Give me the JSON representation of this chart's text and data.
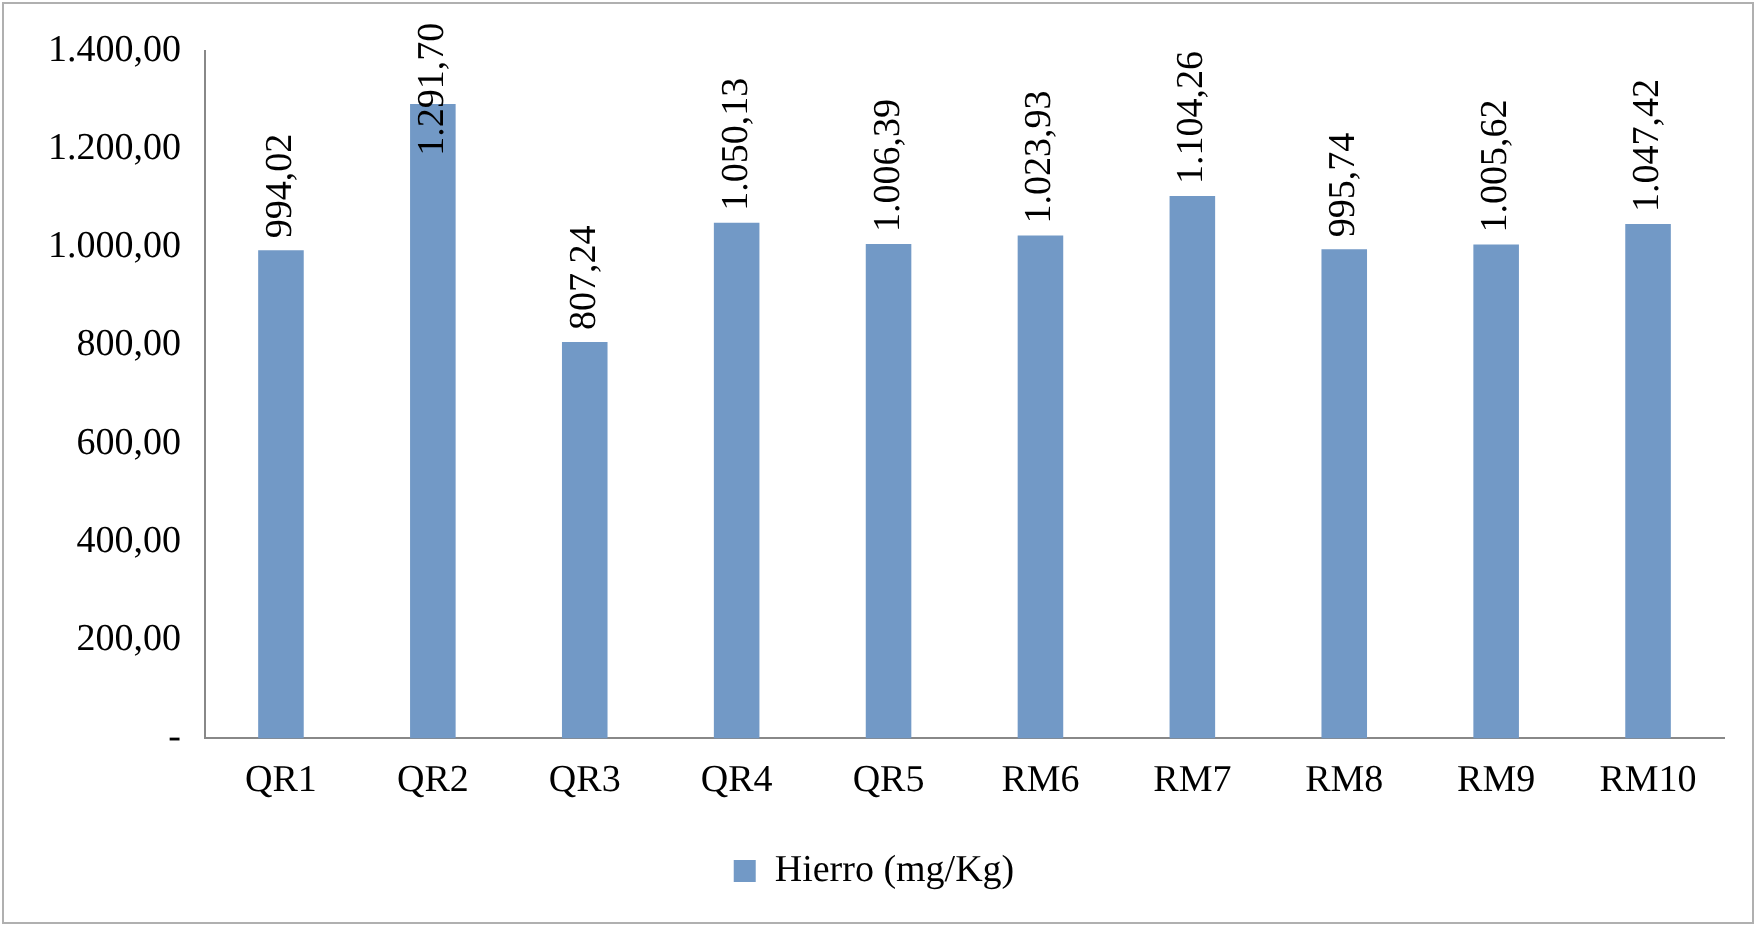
{
  "chart_data": {
    "type": "bar",
    "categories": [
      "QR1",
      "QR2",
      "QR3",
      "QR4",
      "QR5",
      "RM6",
      "RM7",
      "RM8",
      "RM9",
      "RM10"
    ],
    "series": [
      {
        "name": "Hierro (mg/Kg)",
        "color": "#7299c6",
        "values": [
          994.02,
          1291.7,
          807.24,
          1050.13,
          1006.39,
          1023.93,
          1104.26,
          995.74,
          1005.62,
          1047.42
        ],
        "value_labels": [
          "994,02",
          "1.291,70",
          "807,24",
          "1.050,13",
          "1.006,39",
          "1.023,93",
          "1.104,26",
          "995,74",
          "1.005,62",
          "1.047,42"
        ]
      }
    ],
    "ylim": [
      0,
      1400
    ],
    "yticks": [
      {
        "value": 0,
        "label": "-"
      },
      {
        "value": 200,
        "label": "200,00"
      },
      {
        "value": 400,
        "label": "400,00"
      },
      {
        "value": 600,
        "label": "600,00"
      },
      {
        "value": 800,
        "label": "800,00"
      },
      {
        "value": 1000,
        "label": "1.000,00"
      },
      {
        "value": 1200,
        "label": "1.200,00"
      },
      {
        "value": 1400,
        "label": "1.400,00"
      }
    ],
    "grid": false,
    "legend": "bottom"
  }
}
